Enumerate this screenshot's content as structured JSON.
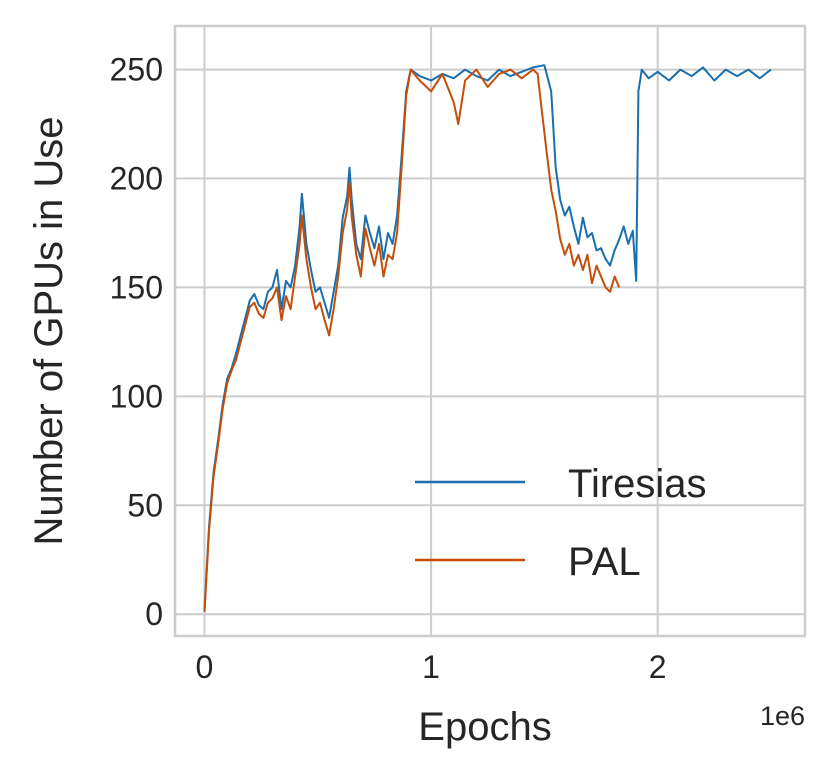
{
  "chart_data": {
    "type": "line",
    "title": "",
    "xlabel": "Epochs",
    "ylabel": "Number of GPUs in Use",
    "x_offset_label": "1e6",
    "xlim": [
      -130000,
      2650000
    ],
    "ylim": [
      -10,
      270
    ],
    "x_ticks": [
      {
        "value": 0,
        "label": "0"
      },
      {
        "value": 1000000,
        "label": "1"
      },
      {
        "value": 2000000,
        "label": "2"
      }
    ],
    "y_ticks": [
      {
        "value": 0,
        "label": "0"
      },
      {
        "value": 50,
        "label": "50"
      },
      {
        "value": 100,
        "label": "100"
      },
      {
        "value": 150,
        "label": "150"
      },
      {
        "value": 200,
        "label": "200"
      },
      {
        "value": 250,
        "label": "250"
      }
    ],
    "grid": true,
    "legend": {
      "position": "lower-right"
    },
    "series": [
      {
        "name": "Tiresias",
        "color": "#1a6faf",
        "points": [
          [
            0,
            2
          ],
          [
            20000,
            40
          ],
          [
            40000,
            65
          ],
          [
            60000,
            80
          ],
          [
            80000,
            96
          ],
          [
            100000,
            108
          ],
          [
            120000,
            113
          ],
          [
            140000,
            120
          ],
          [
            160000,
            128
          ],
          [
            180000,
            136
          ],
          [
            200000,
            144
          ],
          [
            220000,
            147
          ],
          [
            240000,
            142
          ],
          [
            260000,
            140
          ],
          [
            280000,
            148
          ],
          [
            300000,
            150
          ],
          [
            320000,
            158
          ],
          [
            340000,
            140
          ],
          [
            360000,
            153
          ],
          [
            380000,
            150
          ],
          [
            400000,
            160
          ],
          [
            420000,
            178
          ],
          [
            430000,
            193
          ],
          [
            450000,
            170
          ],
          [
            470000,
            158
          ],
          [
            490000,
            148
          ],
          [
            510000,
            150
          ],
          [
            530000,
            143
          ],
          [
            550000,
            136
          ],
          [
            570000,
            148
          ],
          [
            590000,
            160
          ],
          [
            610000,
            182
          ],
          [
            630000,
            192
          ],
          [
            640000,
            205
          ],
          [
            650000,
            190
          ],
          [
            670000,
            170
          ],
          [
            690000,
            163
          ],
          [
            710000,
            183
          ],
          [
            730000,
            175
          ],
          [
            750000,
            168
          ],
          [
            770000,
            178
          ],
          [
            790000,
            163
          ],
          [
            810000,
            175
          ],
          [
            830000,
            170
          ],
          [
            850000,
            183
          ],
          [
            870000,
            210
          ],
          [
            890000,
            240
          ],
          [
            910000,
            250
          ],
          [
            950000,
            247
          ],
          [
            1000000,
            245
          ],
          [
            1050000,
            248
          ],
          [
            1100000,
            246
          ],
          [
            1150000,
            250
          ],
          [
            1200000,
            247
          ],
          [
            1250000,
            245
          ],
          [
            1300000,
            250
          ],
          [
            1350000,
            247
          ],
          [
            1400000,
            249
          ],
          [
            1450000,
            251
          ],
          [
            1500000,
            252
          ],
          [
            1530000,
            240
          ],
          [
            1550000,
            205
          ],
          [
            1570000,
            190
          ],
          [
            1590000,
            183
          ],
          [
            1610000,
            187
          ],
          [
            1630000,
            178
          ],
          [
            1650000,
            170
          ],
          [
            1670000,
            182
          ],
          [
            1690000,
            173
          ],
          [
            1710000,
            175
          ],
          [
            1730000,
            167
          ],
          [
            1750000,
            168
          ],
          [
            1770000,
            163
          ],
          [
            1790000,
            160
          ],
          [
            1810000,
            167
          ],
          [
            1830000,
            172
          ],
          [
            1850000,
            178
          ],
          [
            1870000,
            170
          ],
          [
            1890000,
            176
          ],
          [
            1905000,
            153
          ],
          [
            1915000,
            240
          ],
          [
            1930000,
            250
          ],
          [
            1960000,
            246
          ],
          [
            2000000,
            249
          ],
          [
            2050000,
            245
          ],
          [
            2100000,
            250
          ],
          [
            2150000,
            247
          ],
          [
            2200000,
            251
          ],
          [
            2250000,
            245
          ],
          [
            2300000,
            250
          ],
          [
            2350000,
            247
          ],
          [
            2400000,
            250
          ],
          [
            2450000,
            246
          ],
          [
            2500000,
            250
          ]
        ]
      },
      {
        "name": "PAL",
        "color": "#c44e08",
        "points": [
          [
            0,
            1
          ],
          [
            20000,
            38
          ],
          [
            40000,
            63
          ],
          [
            60000,
            78
          ],
          [
            80000,
            94
          ],
          [
            100000,
            106
          ],
          [
            120000,
            112
          ],
          [
            140000,
            117
          ],
          [
            160000,
            125
          ],
          [
            180000,
            133
          ],
          [
            200000,
            141
          ],
          [
            220000,
            143
          ],
          [
            240000,
            138
          ],
          [
            260000,
            136
          ],
          [
            280000,
            143
          ],
          [
            300000,
            145
          ],
          [
            320000,
            150
          ],
          [
            340000,
            135
          ],
          [
            360000,
            146
          ],
          [
            380000,
            140
          ],
          [
            400000,
            155
          ],
          [
            420000,
            170
          ],
          [
            430000,
            183
          ],
          [
            450000,
            163
          ],
          [
            470000,
            150
          ],
          [
            490000,
            140
          ],
          [
            510000,
            143
          ],
          [
            530000,
            135
          ],
          [
            550000,
            128
          ],
          [
            570000,
            140
          ],
          [
            590000,
            155
          ],
          [
            610000,
            175
          ],
          [
            630000,
            186
          ],
          [
            640000,
            198
          ],
          [
            650000,
            182
          ],
          [
            670000,
            165
          ],
          [
            690000,
            155
          ],
          [
            710000,
            177
          ],
          [
            730000,
            168
          ],
          [
            750000,
            160
          ],
          [
            770000,
            170
          ],
          [
            790000,
            155
          ],
          [
            810000,
            165
          ],
          [
            830000,
            163
          ],
          [
            850000,
            175
          ],
          [
            870000,
            205
          ],
          [
            890000,
            238
          ],
          [
            910000,
            250
          ],
          [
            950000,
            245
          ],
          [
            1000000,
            240
          ],
          [
            1050000,
            248
          ],
          [
            1100000,
            235
          ],
          [
            1120000,
            225
          ],
          [
            1150000,
            245
          ],
          [
            1200000,
            250
          ],
          [
            1250000,
            242
          ],
          [
            1300000,
            248
          ],
          [
            1350000,
            250
          ],
          [
            1400000,
            246
          ],
          [
            1450000,
            250
          ],
          [
            1470000,
            248
          ],
          [
            1490000,
            230
          ],
          [
            1510000,
            212
          ],
          [
            1530000,
            195
          ],
          [
            1550000,
            185
          ],
          [
            1570000,
            172
          ],
          [
            1590000,
            165
          ],
          [
            1610000,
            170
          ],
          [
            1630000,
            160
          ],
          [
            1650000,
            165
          ],
          [
            1670000,
            158
          ],
          [
            1690000,
            165
          ],
          [
            1710000,
            152
          ],
          [
            1730000,
            160
          ],
          [
            1750000,
            155
          ],
          [
            1770000,
            150
          ],
          [
            1790000,
            148
          ],
          [
            1810000,
            155
          ],
          [
            1830000,
            150
          ]
        ]
      }
    ]
  }
}
